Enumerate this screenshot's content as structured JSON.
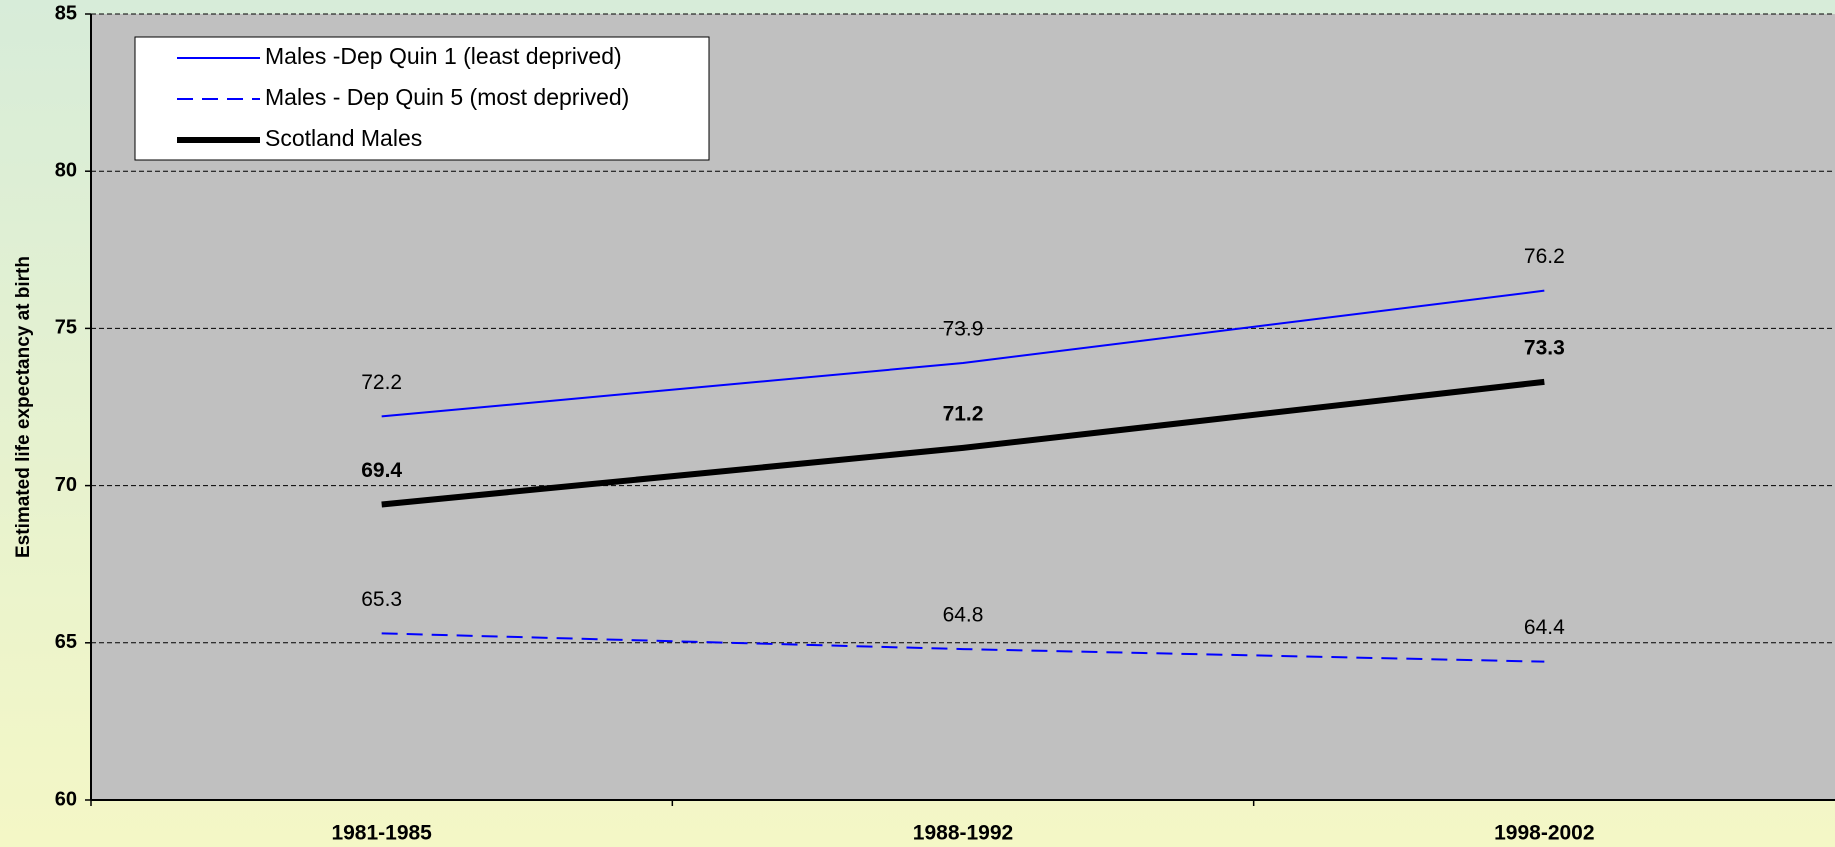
{
  "chart_data": {
    "type": "line",
    "y_label": "Estimated life expectancy at birth",
    "categories": [
      "1981-1985",
      "1988-1992",
      "1998-2002"
    ],
    "series": [
      {
        "name": "Males -Dep Quin 1 (least deprived)",
        "color": "#0000ff",
        "line_style": "solid",
        "line_width": 2,
        "values": [
          72.2,
          73.9,
          76.2
        ]
      },
      {
        "name": "Males - Dep Quin 5 (most deprived)",
        "color": "#0000ff",
        "line_style": "dashed",
        "line_width": 2,
        "values": [
          65.3,
          64.8,
          64.4
        ]
      },
      {
        "name": "Scotland Males",
        "color": "#000000",
        "line_style": "solid",
        "line_width": 6,
        "values": [
          69.4,
          71.2,
          73.3
        ]
      }
    ],
    "ylim": [
      60,
      85
    ],
    "yticks": [
      60,
      65,
      70,
      75,
      80,
      85
    ],
    "grid": true,
    "legend": "top-left"
  }
}
